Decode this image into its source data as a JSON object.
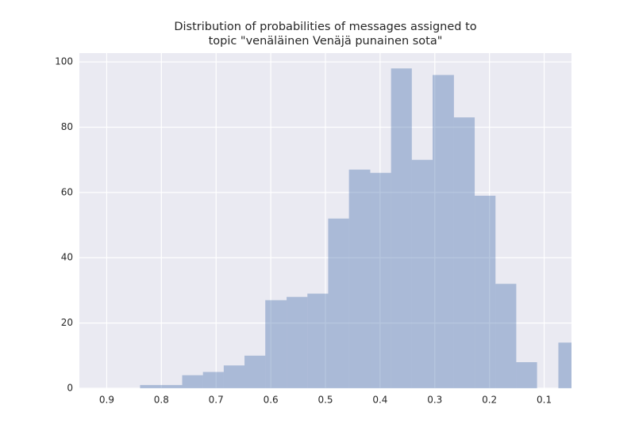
{
  "chart_data": {
    "type": "histogram",
    "title": [
      "Distribution of probabilities of messages assigned to",
      "topic \"venäläinen Venäjä punainen sota\""
    ],
    "bins": [
      0.839,
      0.801,
      0.762,
      0.724,
      0.686,
      0.648,
      0.61,
      0.571,
      0.533,
      0.495,
      0.457,
      0.418,
      0.38,
      0.342,
      0.304,
      0.265,
      0.227,
      0.189,
      0.151,
      0.113,
      0.074,
      0.036
    ],
    "values": [
      1,
      1,
      4,
      5,
      7,
      10,
      27,
      28,
      29,
      52,
      67,
      66,
      98,
      70,
      96,
      83,
      59,
      32,
      8,
      0,
      14
    ],
    "color": "#4c72b0",
    "opacity": 0.4,
    "xlim": [
      0.95,
      0.05
    ],
    "xticks": [
      0.9,
      0.8,
      0.7,
      0.6,
      0.5,
      0.4,
      0.3,
      0.2,
      0.1
    ],
    "ylim": [
      0,
      102.7
    ],
    "yticks": [
      0,
      20,
      40,
      60,
      80,
      100
    ],
    "grid": true
  }
}
